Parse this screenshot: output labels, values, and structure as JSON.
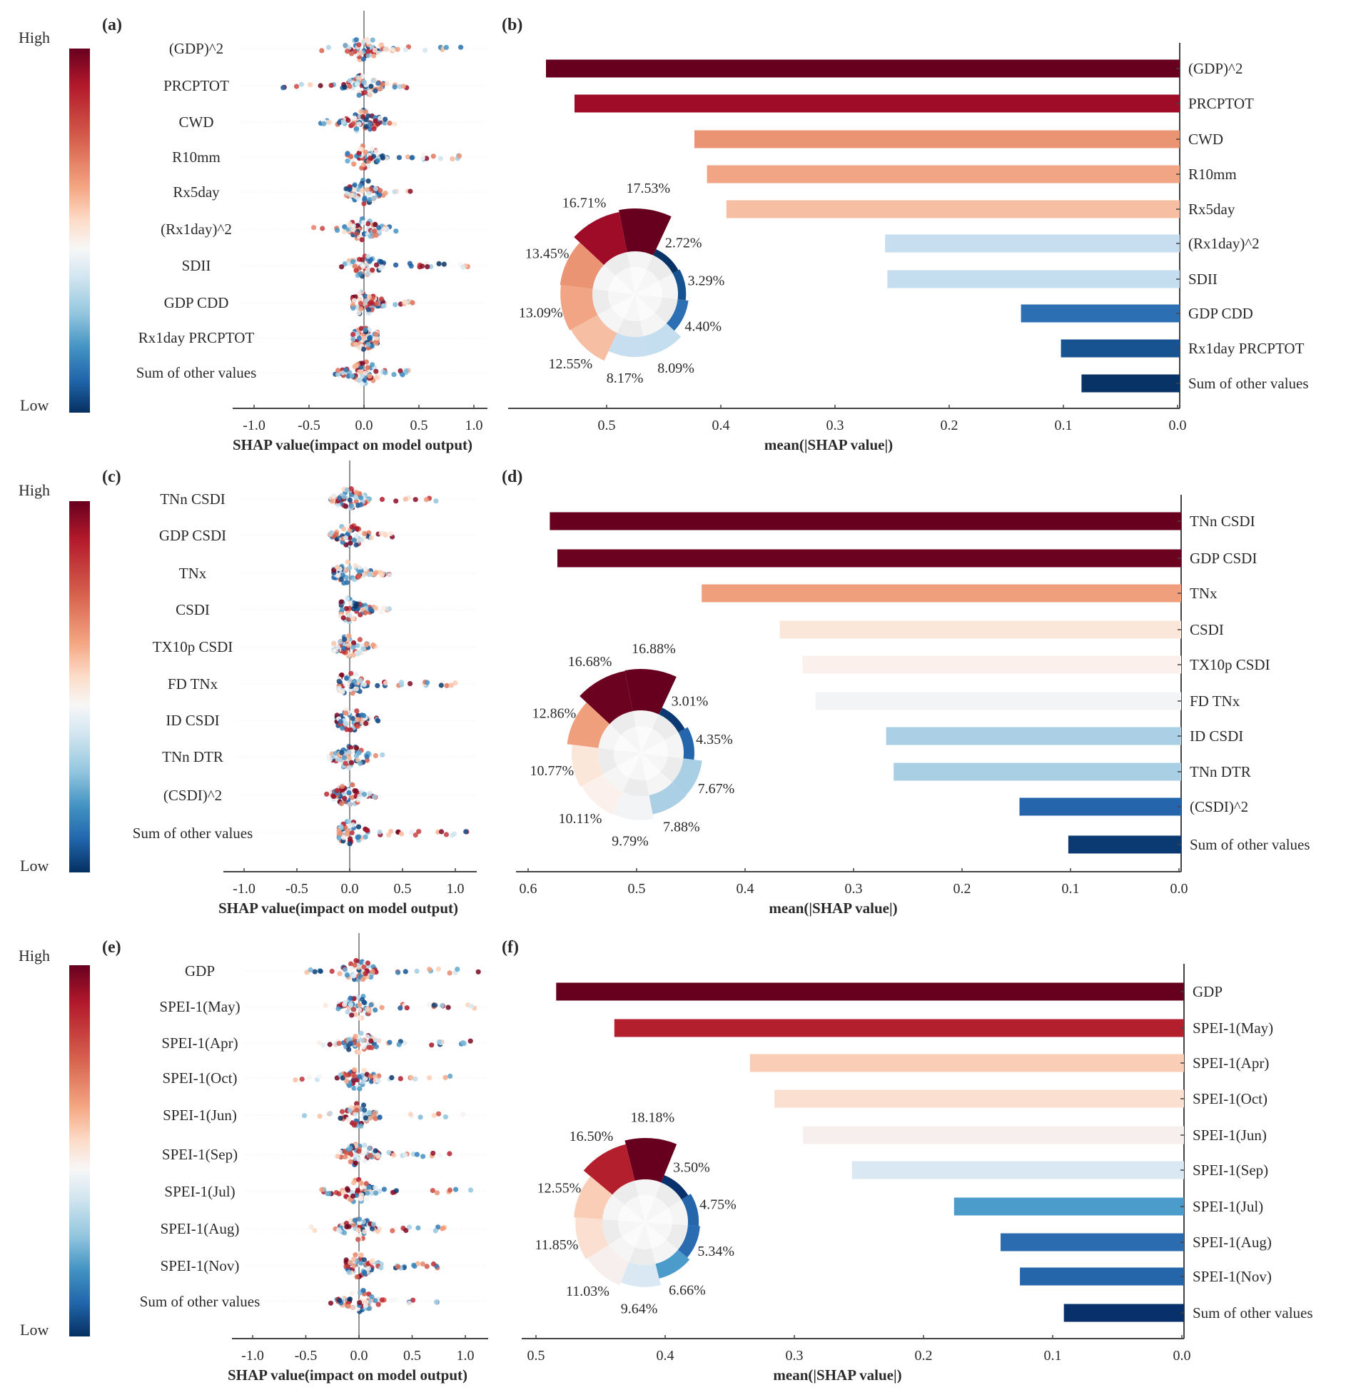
{
  "figure": {
    "colorbar_high": "High",
    "colorbar_low": "Low",
    "colormap": [
      "#67001f",
      "#b2182b",
      "#d6604d",
      "#f4a582",
      "#fddbc7",
      "#f7f7f7",
      "#d1e5f0",
      "#92c5de",
      "#4393c3",
      "#2166ac",
      "#053061"
    ]
  },
  "chart_data": [
    {
      "panel": "(a)",
      "type": "scatter",
      "subtype": "shap-beeswarm",
      "xlabel": "SHAP value(impact on model output)",
      "xticks": [
        "-1.0",
        "-0.5",
        "0.0",
        "0.5",
        "1.0"
      ],
      "xtick_values": [
        -1.0,
        -0.5,
        0.0,
        0.5,
        1.0
      ],
      "xlim": [
        -1.2,
        1.1
      ],
      "features": [
        "(GDP)^2",
        "PRCPTOT",
        "CWD",
        "R10mm",
        "Rx5day",
        "(Rx1day)^2",
        "SDII",
        "GDP CDD",
        "Rx1day PRCPTOT",
        "Sum of other values"
      ],
      "shap_range": [
        [
          -0.45,
          1.05
        ],
        [
          -0.75,
          0.4
        ],
        [
          -0.42,
          0.3
        ],
        [
          -0.15,
          0.95
        ],
        [
          -0.2,
          0.45
        ],
        [
          -0.5,
          0.35
        ],
        [
          -0.28,
          0.95
        ],
        [
          -0.1,
          0.45
        ],
        [
          -0.1,
          0.12
        ],
        [
          -0.28,
          0.45
        ]
      ]
    },
    {
      "panel": "(b)",
      "type": "bar",
      "orientation": "horizontal-reversed",
      "xlabel": "mean(|SHAP value|)",
      "xticks": [
        "0.5",
        "0.4",
        "0.3",
        "0.2",
        "0.1",
        "0.0"
      ],
      "xtick_values": [
        0.5,
        0.4,
        0.3,
        0.2,
        0.1,
        0.0
      ],
      "xlim": [
        0.0,
        0.58
      ],
      "categories": [
        "(GDP)^2",
        "PRCPTOT",
        "CWD",
        "R10mm",
        "Rx5day",
        "(Rx1day)^2",
        "SDII",
        "GDP CDD",
        "Rx1day PRCPTOT",
        "Sum of other values"
      ],
      "values": [
        0.555,
        0.53,
        0.425,
        0.414,
        0.397,
        0.258,
        0.256,
        0.139,
        0.104,
        0.086
      ],
      "colors": [
        "#67001f",
        "#9e0c28",
        "#eb9474",
        "#f2a584",
        "#f6bfa3",
        "#c6def0",
        "#c4ddef",
        "#2c70b3",
        "#175291",
        "#083366"
      ],
      "polar_inset": {
        "type": "pie",
        "labels": [
          "17.53%",
          "16.71%",
          "13.45%",
          "13.09%",
          "12.55%",
          "8.17%",
          "8.09%",
          "4.40%",
          "3.29%",
          "2.72%"
        ],
        "values": [
          17.53,
          16.71,
          13.45,
          13.09,
          12.55,
          8.17,
          8.09,
          4.4,
          3.29,
          2.72
        ]
      }
    },
    {
      "panel": "(c)",
      "type": "scatter",
      "subtype": "shap-beeswarm",
      "xlabel": "SHAP value(impact on model output)",
      "xticks": [
        "-1.0",
        "-0.5",
        "0.0",
        "0.5",
        "1.0"
      ],
      "xtick_values": [
        -1.0,
        -0.5,
        0.0,
        0.5,
        1.0
      ],
      "xlim": [
        -1.2,
        1.2
      ],
      "features": [
        "TNn CSDI",
        "GDP CSDI",
        "TNx",
        "CSDI",
        "TX10p CSDI",
        "FD TNx",
        "ID CSDI",
        "TNn DTR",
        "(CSDI)^2",
        "Sum of other values"
      ],
      "shap_range": [
        [
          -0.2,
          0.92
        ],
        [
          -0.2,
          0.42
        ],
        [
          -0.15,
          0.42
        ],
        [
          -0.08,
          0.38
        ],
        [
          -0.15,
          0.25
        ],
        [
          -0.1,
          1.0
        ],
        [
          -0.12,
          0.3
        ],
        [
          -0.2,
          0.32
        ],
        [
          -0.22,
          0.25
        ],
        [
          -0.1,
          1.15
        ]
      ]
    },
    {
      "panel": "(d)",
      "type": "bar",
      "orientation": "horizontal-reversed",
      "xlabel": "mean(|SHAP value|)",
      "xticks": [
        "0.6",
        "0.5",
        "0.4",
        "0.3",
        "0.2",
        "0.1",
        "0.0"
      ],
      "xtick_values": [
        0.6,
        0.5,
        0.4,
        0.3,
        0.2,
        0.1,
        0.0
      ],
      "xlim": [
        0.0,
        0.61
      ],
      "categories": [
        "TNn CSDI",
        "GDP CSDI",
        "TNx",
        "CSDI",
        "TX10p CSDI",
        "FD TNx",
        "ID CSDI",
        "TNn DTR",
        "(CSDI)^2",
        "Sum of other values"
      ],
      "values": [
        0.582,
        0.575,
        0.442,
        0.37,
        0.349,
        0.337,
        0.272,
        0.265,
        0.149,
        0.104
      ],
      "colors": [
        "#67001f",
        "#6a0220",
        "#ef9f7c",
        "#fbe6da",
        "#fbf0ec",
        "#f3f4f6",
        "#abd0e6",
        "#a9cfe5",
        "#2465ab",
        "#0b3a73"
      ],
      "polar_inset": {
        "type": "pie",
        "labels": [
          "16.88%",
          "16.68%",
          "12.86%",
          "10.77%",
          "10.11%",
          "9.79%",
          "7.88%",
          "7.67%",
          "4.35%",
          "3.01%"
        ],
        "values": [
          16.88,
          16.68,
          12.86,
          10.77,
          10.11,
          9.79,
          7.88,
          7.67,
          4.35,
          3.01
        ]
      }
    },
    {
      "panel": "(e)",
      "type": "scatter",
      "subtype": "shap-beeswarm",
      "xlabel": "SHAP value(impact on model output)",
      "xticks": [
        "-1.0",
        "-0.5",
        "0.0",
        "0.5",
        "1.0"
      ],
      "xtick_values": [
        -1.0,
        -0.5,
        0.0,
        0.5,
        1.0
      ],
      "xlim": [
        -1.2,
        1.2
      ],
      "features": [
        "GDP",
        "SPEI-1(May)",
        "SPEI-1(Apr)",
        "SPEI-1(Oct)",
        "SPEI-1(Jun)",
        "SPEI-1(Sep)",
        "SPEI-1(Jul)",
        "SPEI-1(Aug)",
        "SPEI-1(Nov)",
        "Sum of other values"
      ],
      "shap_range": [
        [
          -0.65,
          1.15
        ],
        [
          -0.38,
          1.18
        ],
        [
          -0.42,
          1.1
        ],
        [
          -0.65,
          1.18
        ],
        [
          -0.62,
          1.05
        ],
        [
          -0.25,
          0.92
        ],
        [
          -0.35,
          1.08
        ],
        [
          -0.45,
          0.85
        ],
        [
          -0.12,
          0.78
        ],
        [
          -0.28,
          0.75
        ]
      ]
    },
    {
      "panel": "(f)",
      "type": "bar",
      "orientation": "horizontal-reversed",
      "xlabel": "mean(|SHAP value|)",
      "xticks": [
        "0.5",
        "0.4",
        "0.3",
        "0.2",
        "0.1",
        "0.0"
      ],
      "xtick_values": [
        0.5,
        0.4,
        0.3,
        0.2,
        0.1,
        0.0
      ],
      "xlim": [
        0.0,
        0.51
      ],
      "categories": [
        "GDP",
        "SPEI-1(May)",
        "SPEI-1(Apr)",
        "SPEI-1(Oct)",
        "SPEI-1(Jun)",
        "SPEI-1(Sep)",
        "SPEI-1(Jul)",
        "SPEI-1(Aug)",
        "SPEI-1(Nov)",
        "Sum of other values"
      ],
      "values": [
        0.486,
        0.441,
        0.336,
        0.317,
        0.295,
        0.257,
        0.178,
        0.142,
        0.127,
        0.093
      ],
      "colors": [
        "#67001f",
        "#b41f2e",
        "#f9cdb6",
        "#fbdfd1",
        "#f6efee",
        "#d9e8f2",
        "#4b9bcb",
        "#2b6cb1",
        "#2565aa",
        "#08306b"
      ],
      "polar_inset": {
        "type": "pie",
        "labels": [
          "18.18%",
          "16.50%",
          "12.55%",
          "11.85%",
          "11.03%",
          "9.64%",
          "6.66%",
          "5.34%",
          "4.75%",
          "3.50%"
        ],
        "values": [
          18.18,
          16.5,
          12.55,
          11.85,
          11.03,
          9.64,
          6.66,
          5.34,
          4.75,
          3.5
        ]
      }
    }
  ]
}
